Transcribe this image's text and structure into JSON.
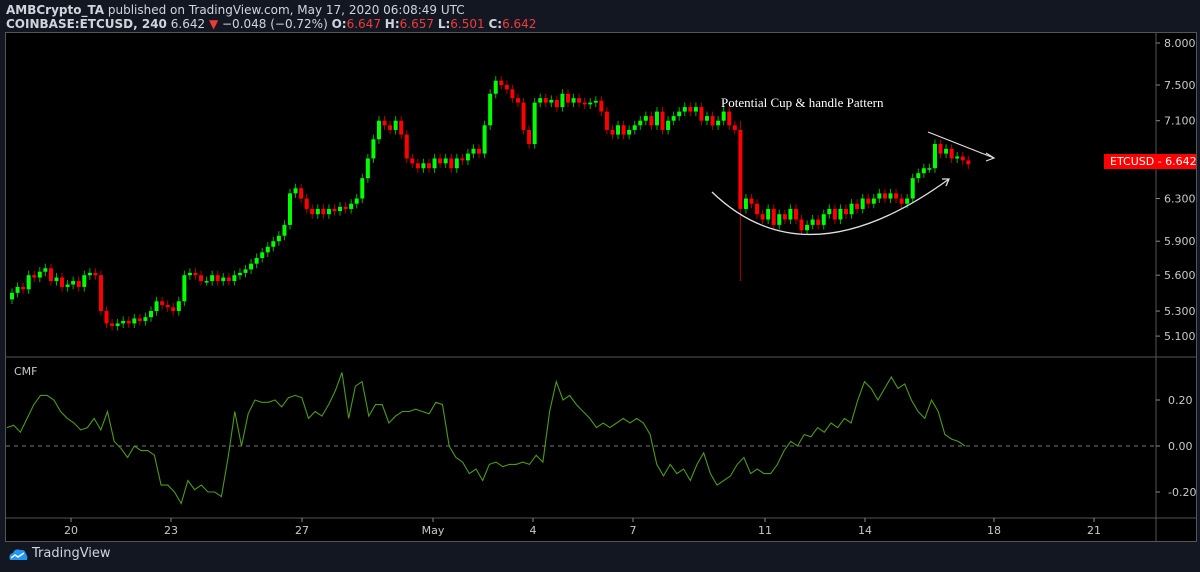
{
  "header": {
    "author": "AMBCrypto_TA",
    "published": "published on TradingView.com, May 17, 2020 06:08:49 UTC",
    "symbol": "COINBASE:ETCUSD, 240",
    "last": "6.642",
    "direction_icon": "triangle-down-icon",
    "change": "−0.048 (−0.72%)",
    "o_label": "O:",
    "o": "6.647",
    "h_label": "H:",
    "h": "6.657",
    "l_label": "L:",
    "l": "6.501",
    "c_label": "C:",
    "c": "6.642"
  },
  "price_axis": {
    "ticks": [
      "8.000",
      "7.500",
      "7.100",
      "6.300",
      "5.900",
      "5.600",
      "5.300",
      "5.100"
    ],
    "scale": "log",
    "last_price_label": "ETCUSD - 6.642",
    "last_price": 6.642,
    "last_price_color": "#ff0000"
  },
  "annotation": {
    "text": "Potential Cup & handle Pattern"
  },
  "cmf": {
    "label": "CMF",
    "ticks": [
      "0.20",
      "0.00",
      "-0.20"
    ],
    "color": "#4c9a1a",
    "values": [
      0.08,
      0.09,
      0.06,
      0.12,
      0.18,
      0.22,
      0.22,
      0.2,
      0.15,
      0.12,
      0.1,
      0.07,
      0.08,
      0.12,
      0.07,
      0.15,
      0.02,
      -0.01,
      -0.05,
      0.0,
      -0.02,
      -0.02,
      -0.04,
      -0.17,
      -0.17,
      -0.2,
      -0.25,
      -0.15,
      -0.19,
      -0.17,
      -0.2,
      -0.2,
      -0.22,
      -0.05,
      0.15,
      0.0,
      0.14,
      0.2,
      0.19,
      0.19,
      0.2,
      0.17,
      0.21,
      0.22,
      0.21,
      0.12,
      0.15,
      0.13,
      0.18,
      0.24,
      0.32,
      0.12,
      0.26,
      0.28,
      0.13,
      0.18,
      0.18,
      0.1,
      0.13,
      0.15,
      0.15,
      0.16,
      0.15,
      0.14,
      0.19,
      0.18,
      0.0,
      -0.05,
      -0.07,
      -0.12,
      -0.1,
      -0.15,
      -0.08,
      -0.07,
      -0.09,
      -0.08,
      -0.08,
      -0.07,
      -0.08,
      -0.04,
      -0.07,
      0.15,
      0.28,
      0.2,
      0.22,
      0.18,
      0.15,
      0.12,
      0.08,
      0.1,
      0.08,
      0.1,
      0.12,
      0.1,
      0.12,
      0.1,
      0.05,
      -0.08,
      -0.13,
      -0.08,
      -0.12,
      -0.1,
      -0.15,
      -0.08,
      -0.03,
      -0.12,
      -0.17,
      -0.15,
      -0.13,
      -0.08,
      -0.05,
      -0.12,
      -0.1,
      -0.12,
      -0.12,
      -0.08,
      -0.02,
      0.02,
      0.0,
      0.05,
      0.04,
      0.08,
      0.06,
      0.1,
      0.08,
      0.12,
      0.1,
      0.2,
      0.28,
      0.25,
      0.2,
      0.25,
      0.3,
      0.25,
      0.27,
      0.2,
      0.15,
      0.12,
      0.2,
      0.15,
      0.05,
      0.03,
      0.02,
      0.0
    ]
  },
  "time_axis": {
    "ticks": [
      "20",
      "23",
      "27",
      "May",
      "4",
      "7",
      "11",
      "14",
      "18",
      "21"
    ]
  },
  "colors": {
    "up": "#00ff00",
    "down": "#ff0000",
    "background": "#000000"
  },
  "candles": {
    "interval": "240",
    "closes": [
      5.45,
      5.5,
      5.48,
      5.6,
      5.58,
      5.63,
      5.66,
      5.55,
      5.58,
      5.5,
      5.52,
      5.55,
      5.5,
      5.6,
      5.62,
      5.6,
      5.3,
      5.2,
      5.18,
      5.2,
      5.22,
      5.2,
      5.24,
      5.22,
      5.25,
      5.3,
      5.38,
      5.35,
      5.33,
      5.3,
      5.38,
      5.6,
      5.62,
      5.6,
      5.55,
      5.55,
      5.6,
      5.55,
      5.58,
      5.55,
      5.6,
      5.62,
      5.65,
      5.7,
      5.75,
      5.8,
      5.85,
      5.9,
      5.95,
      6.05,
      6.35,
      6.4,
      6.3,
      6.2,
      6.15,
      6.2,
      6.15,
      6.2,
      6.18,
      6.22,
      6.2,
      6.25,
      6.3,
      6.5,
      6.7,
      6.9,
      7.1,
      7.05,
      7.0,
      7.1,
      6.95,
      6.7,
      6.65,
      6.6,
      6.65,
      6.6,
      6.7,
      6.65,
      6.7,
      6.6,
      6.7,
      6.68,
      6.75,
      6.8,
      6.75,
      7.05,
      7.4,
      7.55,
      7.5,
      7.45,
      7.35,
      7.3,
      7.0,
      6.85,
      7.3,
      7.35,
      7.3,
      7.33,
      7.25,
      7.4,
      7.3,
      7.35,
      7.3,
      7.28,
      7.3,
      7.32,
      7.2,
      7.0,
      6.95,
      7.05,
      6.95,
      7.0,
      7.05,
      7.1,
      7.15,
      7.05,
      7.2,
      7.0,
      7.1,
      7.15,
      7.2,
      7.25,
      7.2,
      7.25,
      7.1,
      7.15,
      7.05,
      7.1,
      7.2,
      7.05,
      7.0,
      6.2,
      6.3,
      6.25,
      6.15,
      6.1,
      6.2,
      6.05,
      6.15,
      6.1,
      6.2,
      6.1,
      6.0,
      6.05,
      6.1,
      6.05,
      6.15,
      6.2,
      6.1,
      6.2,
      6.15,
      6.25,
      6.2,
      6.3,
      6.25,
      6.3,
      6.35,
      6.3,
      6.35,
      6.3,
      6.25,
      6.3,
      6.5,
      6.55,
      6.6,
      6.6,
      6.85,
      6.75,
      6.8,
      6.7,
      6.72,
      6.68,
      6.64
    ]
  },
  "footer": {
    "brand": "TradingView",
    "logo_icon": "tradingview-cloud-icon"
  }
}
